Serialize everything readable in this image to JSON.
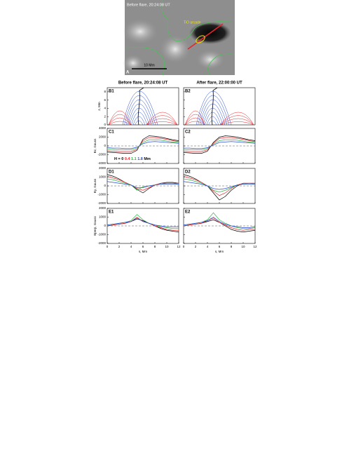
{
  "panel_a": {
    "title": "Before flare, 20:24:08 UT",
    "annotation": "TiO arcade",
    "scale": "10 Mm",
    "label": "A"
  },
  "panel_b": {
    "titles": [
      "Before flare, 20:24:08 UT",
      "After flare, 22:00:00 UT"
    ],
    "labels": [
      "B1",
      "B2"
    ],
    "ylabel": "z, Mm",
    "ylim": [
      0,
      9
    ],
    "yticks": [
      0,
      2,
      4,
      6,
      8
    ]
  },
  "chart_data": [
    {
      "type": "line",
      "label": "C1",
      "ylabel": "Bz, Gauss",
      "legend_prefix": "H =",
      "legend_suffix": "Mm",
      "x": [
        0,
        1,
        2,
        3,
        4,
        5,
        6,
        7,
        8,
        9,
        10,
        11,
        12
      ],
      "xlim": [
        0,
        12
      ],
      "xticks": [
        0,
        2,
        4,
        6,
        8,
        10,
        12
      ],
      "ylim": [
        -4000,
        4000
      ],
      "yticks": [
        -4000,
        -2000,
        0,
        2000,
        4000
      ],
      "series": [
        {
          "name": "0",
          "color": "#000000",
          "values": [
            -1400,
            -1500,
            -1600,
            -1700,
            -1700,
            -1000,
            1500,
            2300,
            2200,
            2000,
            1700,
            1400,
            1200
          ]
        },
        {
          "name": "0.4",
          "color": "#e8262a",
          "values": [
            -1100,
            -1200,
            -1300,
            -1300,
            -1300,
            -800,
            1200,
            1900,
            1900,
            1700,
            1500,
            1200,
            1000
          ]
        },
        {
          "name": "1.1",
          "color": "#2fb34a",
          "values": [
            -700,
            -800,
            -900,
            -900,
            -900,
            -500,
            800,
            1400,
            1400,
            1300,
            1100,
            900,
            800
          ]
        },
        {
          "name": "1.8",
          "color": "#2a4fd8",
          "values": [
            -400,
            -500,
            -500,
            -600,
            -600,
            -300,
            500,
            900,
            1000,
            900,
            800,
            700,
            600
          ]
        }
      ]
    },
    {
      "type": "line",
      "label": "C2",
      "x": [
        0,
        1,
        2,
        3,
        4,
        5,
        6,
        7,
        8,
        9,
        10,
        11,
        12
      ],
      "xlim": [
        0,
        12
      ],
      "xticks": [
        0,
        2,
        4,
        6,
        8,
        10,
        12
      ],
      "ylim": [
        -4000,
        4000
      ],
      "yticks": [
        -4000,
        -2000,
        0,
        2000,
        4000
      ],
      "series": [
        {
          "color": "#000000",
          "values": [
            -1500,
            -1600,
            -1700,
            -1700,
            -1200,
            800,
            2000,
            2300,
            2200,
            2000,
            1700,
            1400,
            1200
          ]
        },
        {
          "color": "#e8262a",
          "values": [
            -1200,
            -1300,
            -1300,
            -1300,
            -900,
            600,
            1700,
            1900,
            1900,
            1700,
            1500,
            1200,
            1000
          ]
        },
        {
          "color": "#2fb34a",
          "values": [
            -800,
            -900,
            -900,
            -900,
            -600,
            400,
            1200,
            1400,
            1400,
            1300,
            1100,
            900,
            800
          ]
        },
        {
          "color": "#2a4fd8",
          "values": [
            -500,
            -500,
            -600,
            -600,
            -400,
            200,
            800,
            900,
            1000,
            900,
            800,
            700,
            600
          ]
        }
      ]
    },
    {
      "type": "line",
      "label": "D1",
      "ylabel": "By, Gauss",
      "x": [
        0,
        1,
        2,
        3,
        4,
        5,
        6,
        7,
        8,
        9,
        10,
        11,
        12
      ],
      "xlim": [
        0,
        12
      ],
      "xticks": [
        0,
        2,
        4,
        6,
        8,
        10,
        12
      ],
      "ylim": [
        -2000,
        2000
      ],
      "yticks": [
        -2000,
        -1000,
        0,
        1000,
        2000
      ],
      "series": [
        {
          "color": "#000000",
          "values": [
            1300,
            1100,
            800,
            400,
            100,
            -400,
            -800,
            -300,
            100,
            300,
            400,
            400,
            300
          ]
        },
        {
          "color": "#e8262a",
          "values": [
            1100,
            900,
            700,
            400,
            100,
            -300,
            -500,
            -200,
            100,
            300,
            300,
            300,
            300
          ]
        },
        {
          "color": "#2fb34a",
          "values": [
            800,
            700,
            500,
            300,
            100,
            -500,
            -100,
            0,
            100,
            200,
            300,
            300,
            200
          ]
        },
        {
          "color": "#2a4fd8",
          "values": [
            500,
            400,
            300,
            200,
            100,
            -200,
            -200,
            0,
            100,
            200,
            200,
            200,
            200
          ]
        }
      ]
    },
    {
      "type": "line",
      "label": "D2",
      "x": [
        0,
        1,
        2,
        3,
        4,
        5,
        6,
        7,
        8,
        9,
        10,
        11,
        12
      ],
      "xlim": [
        0,
        12
      ],
      "xticks": [
        0,
        2,
        4,
        6,
        8,
        10,
        12
      ],
      "ylim": [
        -2000,
        2000
      ],
      "yticks": [
        -2000,
        -1000,
        0,
        1000,
        2000
      ],
      "series": [
        {
          "color": "#000000",
          "values": [
            1300,
            1100,
            800,
            400,
            0,
            -800,
            -1600,
            -1200,
            -500,
            0,
            300,
            300,
            300
          ]
        },
        {
          "color": "#e8262a",
          "values": [
            1100,
            900,
            700,
            400,
            0,
            -600,
            -1100,
            -800,
            -300,
            100,
            300,
            300,
            300
          ]
        },
        {
          "color": "#2fb34a",
          "values": [
            800,
            700,
            500,
            300,
            0,
            -500,
            -700,
            -500,
            -200,
            100,
            200,
            300,
            200
          ]
        },
        {
          "color": "#2a4fd8",
          "values": [
            500,
            400,
            300,
            200,
            0,
            -300,
            -400,
            -300,
            -100,
            100,
            200,
            200,
            200
          ]
        }
      ]
    },
    {
      "type": "line",
      "label": "E1",
      "ylabel": "Bperp, Gauss",
      "xlabel": "s, Mm",
      "x": [
        0,
        1,
        2,
        3,
        4,
        5,
        6,
        7,
        8,
        9,
        10,
        11,
        12
      ],
      "xlim": [
        0,
        12
      ],
      "xticks": [
        0,
        2,
        4,
        6,
        8,
        10,
        12
      ],
      "ylim": [
        -2000,
        2000
      ],
      "yticks": [
        -2000,
        -1000,
        0,
        1000,
        2000
      ],
      "series": [
        {
          "color": "#000000",
          "values": [
            0,
            100,
            200,
            300,
            500,
            800,
            600,
            300,
            0,
            -300,
            -500,
            -600,
            -700
          ]
        },
        {
          "color": "#e8262a",
          "values": [
            0,
            100,
            200,
            300,
            500,
            1000,
            500,
            300,
            0,
            -200,
            -400,
            -500,
            -500
          ]
        },
        {
          "color": "#2fb34a",
          "values": [
            100,
            200,
            300,
            400,
            600,
            1300,
            700,
            300,
            100,
            -100,
            -200,
            -300,
            -300
          ]
        },
        {
          "color": "#2a4fd8",
          "values": [
            100,
            200,
            300,
            400,
            500,
            900,
            500,
            300,
            100,
            0,
            -100,
            -100,
            -100
          ]
        }
      ]
    },
    {
      "type": "line",
      "label": "E2",
      "xlabel": "s, Mm",
      "x": [
        0,
        1,
        2,
        3,
        4,
        5,
        6,
        7,
        8,
        9,
        10,
        11,
        12
      ],
      "xlim": [
        0,
        12
      ],
      "xticks": [
        0,
        2,
        4,
        6,
        8,
        10,
        12
      ],
      "ylim": [
        -2000,
        2000
      ],
      "yticks": [
        -2000,
        -1000,
        0,
        1000,
        2000
      ],
      "series": [
        {
          "color": "#000000",
          "values": [
            0,
            100,
            200,
            300,
            500,
            700,
            400,
            0,
            -400,
            -600,
            -700,
            -600,
            -500
          ]
        },
        {
          "color": "#e8262a",
          "values": [
            0,
            100,
            200,
            300,
            600,
            900,
            400,
            100,
            -200,
            -400,
            -500,
            -400,
            -400
          ]
        },
        {
          "color": "#2fb34a",
          "values": [
            100,
            200,
            300,
            400,
            700,
            1500,
            700,
            300,
            0,
            -200,
            -300,
            -300,
            -200
          ]
        },
        {
          "color": "#2a4fd8",
          "values": [
            100,
            200,
            300,
            400,
            600,
            1000,
            500,
            200,
            0,
            -100,
            -200,
            -200,
            -100
          ]
        }
      ]
    }
  ]
}
